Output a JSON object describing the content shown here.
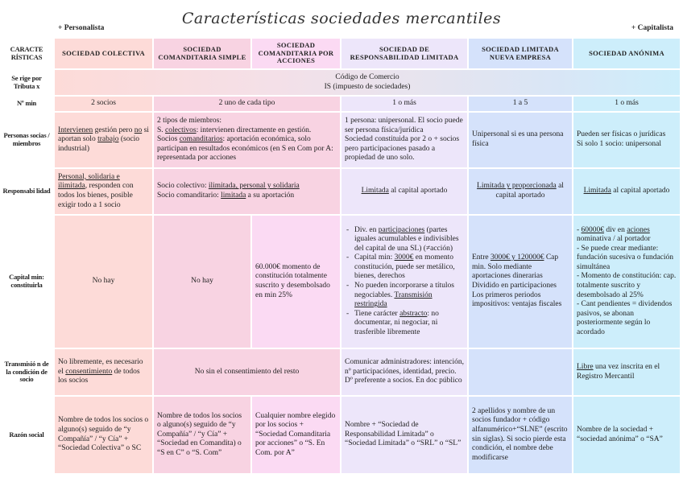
{
  "title": "Características sociedades mercantiles",
  "left_label": "+ Personalista",
  "right_label": "+ Capitalista",
  "colors": {
    "col1": "#fddbd8",
    "col2": "#f8d3e2",
    "col3": "#fbdaf3",
    "col4": "#ede6fa",
    "col5": "#d5e2fb",
    "col6": "#cdeefb"
  },
  "rows": [
    {
      "label": "CARACTE RÍSTICAS",
      "header": true,
      "cells": [
        {
          "cols": [
            1
          ],
          "p": [
            [
              "SOCIEDAD COLECTIVA"
            ]
          ]
        },
        {
          "cols": [
            2
          ],
          "p": [
            [
              "SOCIEDAD COMANDITARIA SIMPLE"
            ]
          ]
        },
        {
          "cols": [
            3
          ],
          "p": [
            [
              "SOCIEDAD COMANDITARIA POR ACCIONES"
            ]
          ]
        },
        {
          "cols": [
            4
          ],
          "p": [
            [
              "SOCIEDAD DE RESPONSABILIDAD LIMITADA"
            ]
          ]
        },
        {
          "cols": [
            5
          ],
          "p": [
            [
              "SOCIEDAD LIMITADA NUEVA EMPRESA"
            ]
          ]
        },
        {
          "cols": [
            6
          ],
          "p": [
            [
              "SOCIEDAD ANÓNIMA"
            ]
          ]
        }
      ]
    },
    {
      "label": "Se rige por Tributa x",
      "cells": [
        {
          "cols": [
            1,
            6
          ],
          "grad": true,
          "center": true,
          "p": [
            [
              "Código de Comercio"
            ],
            [
              "IS (impuesto de sociedades)"
            ]
          ]
        }
      ]
    },
    {
      "label": "Nº min",
      "cells": [
        {
          "cols": [
            1
          ],
          "center": true,
          "p": [
            [
              "2 socios"
            ]
          ]
        },
        {
          "cols": [
            2,
            3
          ],
          "center": true,
          "p": [
            [
              "2 uno de cada tipo"
            ]
          ]
        },
        {
          "cols": [
            4
          ],
          "center": true,
          "p": [
            [
              "1 o más"
            ]
          ]
        },
        {
          "cols": [
            5
          ],
          "center": true,
          "p": [
            [
              "1 a 5"
            ]
          ]
        },
        {
          "cols": [
            6
          ],
          "center": true,
          "p": [
            [
              "1 o más"
            ]
          ]
        }
      ]
    },
    {
      "label": "Personas socias / miembros",
      "cells": [
        {
          "cols": [
            1
          ],
          "p": [
            [
              {
                "u": "Intervienen"
              },
              " gestión pero ",
              {
                "u": "no"
              },
              " si aportan solo ",
              {
                "u": "trabajo"
              },
              " (socio industrial)"
            ]
          ]
        },
        {
          "cols": [
            2,
            3
          ],
          "p": [
            [
              "2 tipos de miembros:"
            ],
            [
              "S. ",
              {
                "u": "colectivos"
              },
              ": intervienen directamente en gestión."
            ],
            [
              "Socios ",
              {
                "u": "comanditarios"
              },
              ": aportación económica, solo participan en resultados económicos (en S en Com por A: representada por acciones"
            ]
          ]
        },
        {
          "cols": [
            4
          ],
          "p": [
            [
              "1 persona: unipersonal. El socio puede ser persona física/jurídica"
            ],
            [
              "Sociedad constituida por 2 o + socios pero participaciones pasado a propiedad de uno solo."
            ]
          ]
        },
        {
          "cols": [
            5
          ],
          "p": [
            [
              "Unipersonal si es una persona física"
            ]
          ]
        },
        {
          "cols": [
            6
          ],
          "p": [
            [
              "Pueden ser físicas o jurídicas"
            ],
            [
              "Si solo 1 socio: unipersonal"
            ]
          ]
        }
      ]
    },
    {
      "label": "Responsabi lidad",
      "cells": [
        {
          "cols": [
            1
          ],
          "p": [
            [
              {
                "u": "Personal, solidaria e ilimitada"
              },
              ", responden con todos los bienes, posible exigir todo a 1 socio"
            ]
          ]
        },
        {
          "cols": [
            2,
            3
          ],
          "p": [
            [
              "Socio colectivo: ",
              {
                "u": "ilimitada, personal y solidaria"
              }
            ],
            [
              "Socio comanditario: ",
              {
                "u": "limitada"
              },
              " a su aportación"
            ]
          ]
        },
        {
          "cols": [
            4
          ],
          "center": true,
          "p": [
            [
              {
                "u": "Limitada"
              },
              " al capital aportado"
            ]
          ]
        },
        {
          "cols": [
            5
          ],
          "center": true,
          "p": [
            [
              {
                "u": "Limitada y proporcionada"
              },
              " al capital aportado"
            ]
          ]
        },
        {
          "cols": [
            6
          ],
          "center": true,
          "p": [
            [
              {
                "u": "Limitada"
              },
              " al capital aportado"
            ]
          ]
        }
      ]
    },
    {
      "label": "Capital min: constituirla",
      "cells": [
        {
          "cols": [
            1
          ],
          "center": true,
          "p": [
            [
              "No hay"
            ]
          ]
        },
        {
          "cols": [
            2
          ],
          "center": true,
          "p": [
            [
              "No hay"
            ]
          ]
        },
        {
          "cols": [
            3
          ],
          "p": [
            [
              "60.000€ momento de constitución totalmente suscrito y desembolsado en min 25%"
            ]
          ]
        },
        {
          "cols": [
            4
          ],
          "list": true,
          "p": [
            [
              "Div. en ",
              {
                "u": "participaciones"
              },
              " (partes iguales acumulables e indivisibles del capital de una SL) (≠acción)"
            ],
            [
              "Capital min: ",
              {
                "u": "3000€"
              },
              " en momento constitución, puede ser metálico, bienes, derechos"
            ],
            [
              "No pueden incorporarse a títulos negociables. ",
              {
                "u": "Transmisión restringida"
              }
            ],
            [
              "Tiene carácter ",
              {
                "u": "abstracto"
              },
              ": no documentar, ni negociar, ni trasferible libremente"
            ]
          ]
        },
        {
          "cols": [
            5
          ],
          "p": [
            [
              "Entre ",
              {
                "u": "3000€ y 120000€"
              },
              " Cap min. Solo mediante aportaciones dinerarias Dividido en participaciones"
            ],
            [
              " "
            ],
            [
              "Los primeros periodos impositivos: ventajas fiscales"
            ]
          ]
        },
        {
          "cols": [
            6
          ],
          "p": [
            [
              "- ",
              {
                "u": "60000€"
              },
              " div en ",
              {
                "u": "aciones"
              },
              " nominativa / al portador"
            ],
            [
              "- Se puede crear mediante: fundación sucesiva o fundación simultánea"
            ],
            [
              "- Momento de constitución: cap. totalmente suscrito y desembolsado al 25%"
            ],
            [
              "- Cant pendientes = dividendos pasivos, se abonan posteriormente según lo acordado"
            ]
          ]
        }
      ]
    },
    {
      "label": "Transmisió n de la condición de socio",
      "cells": [
        {
          "cols": [
            1
          ],
          "p": [
            [
              "No libremente, es necesario el ",
              {
                "u": "consentimiento"
              },
              " de todos los socios"
            ]
          ]
        },
        {
          "cols": [
            2,
            3
          ],
          "center": true,
          "p": [
            [
              "No sin el consentimiento del resto"
            ]
          ]
        },
        {
          "cols": [
            4
          ],
          "p": [
            [
              "Comunicar administradores: intención, nº participaciónes, identidad, precio. Dº preferente a socios. En doc público"
            ]
          ]
        },
        {
          "cols": [
            5
          ],
          "p": []
        },
        {
          "cols": [
            6
          ],
          "p": [
            [
              {
                "u": "Libre"
              },
              " una vez inscrita en el Registro Mercantil"
            ]
          ]
        }
      ]
    },
    {
      "label": "Razón social",
      "cells": [
        {
          "cols": [
            1
          ],
          "p": [
            [
              "Nombre de todos los socios o alguno(s) seguido de “y Compañía” / “y Cía” + “Sociedad Colectiva” o SC"
            ]
          ]
        },
        {
          "cols": [
            2
          ],
          "p": [
            [
              "Nombre de todos los socios o alguno(s) seguido de “y Compañía” / “y Cía” + “Sociedad en Comandita) o “S en C” o “S. Com”"
            ]
          ]
        },
        {
          "cols": [
            3
          ],
          "p": [
            [
              "Cualquier nombre elegido por los socios + “Sociedad Comanditaria por acciones” o “S. En Com. por A”"
            ]
          ]
        },
        {
          "cols": [
            4
          ],
          "p": [
            [
              "Nombre + “Sociedad de Responsabilidad Limitada” o “Sociedad Limitada” o “SRL” o “SL”"
            ]
          ]
        },
        {
          "cols": [
            5
          ],
          "p": [
            [
              "2 apellidos y nombre de un socios fundador + código alfanumérico+“SLNE” (escrito sin siglas). Si socio pierde esta condición, el nombre debe modificarse"
            ]
          ]
        },
        {
          "cols": [
            6
          ],
          "p": [
            [
              "Nombre de la sociedad + “sociedad anónima” o “SA”"
            ]
          ]
        }
      ]
    }
  ]
}
